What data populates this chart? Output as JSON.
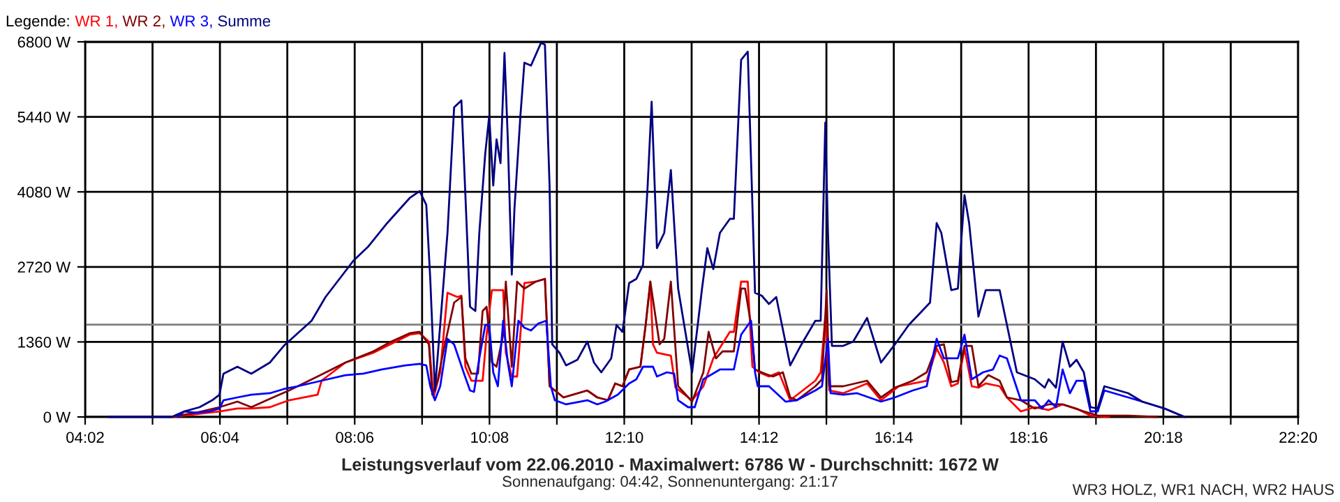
{
  "chart_data": {
    "type": "line",
    "title": "Leistungsverlauf vom 22.06.2010 - Maximalwert: 6786 W - Durchschnitt: 1672 W",
    "subtitle": "Sonnenaufgang: 04:42, Sonnenuntergang: 21:17",
    "legend_title": "Legende:",
    "annotations": [
      "WR3 HOLZ, WR1 NACH, WR2 HAUS",
      ",",
      ",",
      ","
    ],
    "legend": "top left",
    "grid": true,
    "marker": "none",
    "line_style": "solid",
    "xlim": [
      4.0333,
      22.3333
    ],
    "xticks": [
      {
        "value": 4.0333,
        "label": "04:02"
      },
      {
        "value": 5.05,
        "label": null
      },
      {
        "value": 6.0667,
        "label": "06:04"
      },
      {
        "value": 7.0833,
        "label": null
      },
      {
        "value": 8.1,
        "label": "08:06"
      },
      {
        "value": 9.1167,
        "label": null
      },
      {
        "value": 10.1333,
        "label": "10:08"
      },
      {
        "value": 11.15,
        "label": null
      },
      {
        "value": 12.1667,
        "label": "12:10"
      },
      {
        "value": 13.1833,
        "label": null
      },
      {
        "value": 14.2,
        "label": "14:12"
      },
      {
        "value": 15.2167,
        "label": null
      },
      {
        "value": 16.2333,
        "label": "16:14"
      },
      {
        "value": 17.25,
        "label": null
      },
      {
        "value": 18.2667,
        "label": "18:16"
      },
      {
        "value": 19.2833,
        "label": null
      },
      {
        "value": 20.3,
        "label": "20:18"
      },
      {
        "value": 21.3167,
        "label": null
      },
      {
        "value": 22.3333,
        "label": "22:20"
      }
    ],
    "ylim": [
      0,
      6800
    ],
    "yticks": [
      {
        "value": 0,
        "label": "0 W"
      },
      {
        "value": 1360,
        "label": "1360 W"
      },
      {
        "value": 2720,
        "label": "2720 W"
      },
      {
        "value": 4080,
        "label": "4080 W"
      },
      {
        "value": 5440,
        "label": "5440 W"
      },
      {
        "value": 6800,
        "label": "6800 W"
      }
    ],
    "ref_lines": [
      {
        "axis": "y",
        "value": 1672,
        "color": "#808080"
      }
    ],
    "series": [
      {
        "name": "WR 1",
        "color": "#ff0000",
        "x": [
          5.34,
          6.06,
          6.33,
          6.54,
          6.82,
          7.11,
          7.54,
          7.6,
          7.96,
          8.38,
          8.93,
          9.08,
          9.22,
          9.29,
          9.39,
          9.5,
          9.65,
          9.71,
          9.77,
          9.86,
          10.03,
          10.09,
          10.17,
          10.34,
          10.38,
          10.47,
          10.55,
          10.66,
          10.83,
          10.97,
          11.04,
          11.12,
          11.25,
          11.61,
          11.76,
          11.92,
          12.03,
          12.14,
          12.24,
          12.41,
          12.49,
          12.56,
          12.6,
          12.66,
          12.87,
          12.94,
          13.19,
          13.36,
          13.51,
          13.76,
          13.82,
          13.93,
          14.03,
          14.1,
          14.2,
          14.35,
          14.5,
          14.67,
          15.05,
          15.13,
          15.2,
          15.26,
          15.47,
          15.83,
          16.04,
          16.31,
          16.73,
          16.88,
          16.99,
          17.1,
          17.2,
          17.3,
          17.41,
          17.51,
          17.62,
          17.83,
          17.94,
          18.15,
          18.36,
          18.57,
          18.78,
          18.99,
          19.2,
          19.48
        ],
        "values": [
          0,
          101,
          152,
          152,
          177,
          303,
          404,
          657,
          986,
          1163,
          1492,
          1517,
          1365,
          354,
          809,
          2250,
          2174,
          2199,
          910,
          657,
          657,
          1492,
          2300,
          2300,
          1163,
          733,
          733,
          2427,
          2452,
          2503,
          556,
          480,
          354,
          480,
          354,
          303,
          607,
          556,
          860,
          910,
          1668,
          2452,
          1315,
          1163,
          1112,
          531,
          303,
          556,
          1062,
          1542,
          1542,
          2452,
          2452,
          910,
          809,
          733,
          809,
          303,
          657,
          809,
          1820,
          480,
          430,
          607,
          303,
          556,
          657,
          1239,
          986,
          556,
          607,
          1239,
          556,
          531,
          607,
          556,
          354,
          101,
          177,
          126,
          228,
          152,
          25,
          0
        ]
      },
      {
        "name": "WR 2",
        "color": "#800000",
        "x": [
          5.34,
          5.7,
          6.06,
          6.33,
          6.54,
          6.82,
          7.11,
          7.54,
          7.96,
          8.38,
          8.65,
          8.93,
          9.08,
          9.22,
          9.27,
          9.35,
          9.46,
          9.6,
          9.71,
          9.77,
          9.86,
          9.96,
          10.03,
          10.09,
          10.17,
          10.24,
          10.34,
          10.38,
          10.47,
          10.55,
          10.66,
          10.83,
          10.97,
          11.04,
          11.12,
          11.25,
          11.61,
          11.76,
          11.92,
          12.03,
          12.14,
          12.24,
          12.41,
          12.49,
          12.56,
          12.7,
          12.77,
          12.87,
          12.98,
          13.19,
          13.36,
          13.44,
          13.55,
          13.65,
          13.82,
          13.93,
          13.99,
          14.08,
          14.14,
          14.29,
          14.41,
          14.56,
          14.67,
          14.77,
          15.05,
          15.15,
          15.22,
          15.26,
          15.47,
          15.83,
          16.04,
          16.25,
          16.52,
          16.73,
          16.88,
          16.99,
          17.1,
          17.2,
          17.3,
          17.41,
          17.51,
          17.66,
          17.83,
          17.94,
          18.15,
          18.36,
          18.57,
          18.78,
          19.1,
          19.31,
          19.77,
          20.2
        ],
        "values": [
          0,
          76,
          177,
          278,
          177,
          329,
          480,
          733,
          986,
          1188,
          1365,
          1517,
          1542,
          1315,
          404,
          657,
          1315,
          2073,
          2174,
          1062,
          784,
          784,
          1921,
          1997,
          986,
          910,
          1492,
          2452,
          910,
          2452,
          2326,
          2452,
          2503,
          556,
          480,
          354,
          480,
          354,
          303,
          607,
          556,
          860,
          910,
          1668,
          2452,
          1315,
          1416,
          2452,
          556,
          278,
          809,
          1542,
          1062,
          1188,
          1188,
          2326,
          2326,
          1668,
          860,
          784,
          733,
          809,
          354,
          303,
          556,
          683,
          2300,
          556,
          556,
          657,
          354,
          531,
          657,
          809,
          1289,
          1315,
          632,
          657,
          1289,
          1289,
          556,
          758,
          657,
          354,
          303,
          152,
          228,
          228,
          101,
          25,
          25,
          0
        ]
      },
      {
        "name": "WR 3",
        "color": "#0000ff",
        "x": [
          5.43,
          5.53,
          5.7,
          5.91,
          6.06,
          6.12,
          6.33,
          6.54,
          6.82,
          7.03,
          7.24,
          7.6,
          7.96,
          8.23,
          8.51,
          8.86,
          9.08,
          9.18,
          9.24,
          9.31,
          9.39,
          9.5,
          9.6,
          9.75,
          9.84,
          9.9,
          9.98,
          10.07,
          10.13,
          10.19,
          10.26,
          10.34,
          10.41,
          10.47,
          10.57,
          10.66,
          10.76,
          10.87,
          10.99,
          11.06,
          11.12,
          11.29,
          11.61,
          11.76,
          11.88,
          12.07,
          12.24,
          12.35,
          12.45,
          12.6,
          12.66,
          12.81,
          12.92,
          12.98,
          13.13,
          13.23,
          13.36,
          13.61,
          13.82,
          13.93,
          14.08,
          14.14,
          14.18,
          14.35,
          14.6,
          14.77,
          15.05,
          15.15,
          15.24,
          15.28,
          15.47,
          15.68,
          16.04,
          16.25,
          16.52,
          16.73,
          16.88,
          16.99,
          17.2,
          17.26,
          17.3,
          17.41,
          17.58,
          17.73,
          17.83,
          17.94,
          18.15,
          18.36,
          18.47,
          18.57,
          18.68,
          18.78,
          18.89,
          18.99,
          19.1,
          19.2,
          19.31,
          19.41,
          19.77,
          19.98,
          20.32,
          20.62
        ],
        "values": [
          0,
          101,
          76,
          101,
          152,
          303,
          354,
          404,
          430,
          506,
          556,
          657,
          758,
          784,
          860,
          935,
          961,
          935,
          556,
          303,
          556,
          1416,
          1315,
          784,
          480,
          455,
          1062,
          1668,
          1668,
          809,
          556,
          1744,
          986,
          556,
          1744,
          1618,
          1567,
          1694,
          1744,
          556,
          303,
          228,
          303,
          228,
          278,
          404,
          607,
          683,
          910,
          910,
          733,
          809,
          784,
          303,
          177,
          177,
          683,
          860,
          860,
          1492,
          1744,
          809,
          556,
          556,
          278,
          303,
          480,
          556,
          1416,
          430,
          404,
          430,
          278,
          354,
          480,
          556,
          1416,
          1062,
          1062,
          1315,
          1492,
          683,
          809,
          860,
          1112,
          1062,
          303,
          303,
          152,
          303,
          177,
          860,
          430,
          657,
          657,
          101,
          101,
          480,
          354,
          278,
          152,
          0
        ]
      },
      {
        "name": "Summe",
        "color": "#000080",
        "x": [
          4.39,
          4.69,
          5.02,
          5.34,
          5.53,
          5.76,
          5.95,
          6.06,
          6.12,
          6.33,
          6.54,
          6.82,
          7.03,
          7.45,
          7.66,
          8.08,
          8.3,
          8.59,
          8.93,
          9.08,
          9.18,
          9.24,
          9.31,
          9.39,
          9.5,
          9.6,
          9.71,
          9.77,
          9.84,
          9.92,
          9.98,
          10.07,
          10.13,
          10.19,
          10.24,
          10.3,
          10.36,
          10.41,
          10.47,
          10.51,
          10.6,
          10.66,
          10.76,
          10.91,
          10.97,
          11.04,
          11.08,
          11.19,
          11.29,
          11.46,
          11.61,
          11.71,
          11.82,
          11.97,
          12.05,
          12.14,
          12.24,
          12.35,
          12.45,
          12.52,
          12.58,
          12.66,
          12.77,
          12.87,
          12.98,
          13.19,
          13.34,
          13.42,
          13.51,
          13.61,
          13.76,
          13.82,
          13.93,
          14.03,
          14.14,
          14.24,
          14.35,
          14.46,
          14.67,
          14.84,
          15.05,
          15.13,
          15.2,
          15.24,
          15.3,
          15.47,
          15.62,
          15.83,
          16.04,
          16.25,
          16.46,
          16.78,
          16.88,
          16.95,
          17.1,
          17.2,
          17.3,
          17.37,
          17.51,
          17.62,
          17.83,
          18.09,
          18.36,
          18.51,
          18.57,
          18.68,
          18.78,
          18.89,
          18.99,
          19.1,
          19.2,
          19.31,
          19.41,
          19.77,
          19.98,
          20.32,
          20.62
        ],
        "values": [
          0,
          0,
          0,
          0,
          101,
          177,
          303,
          404,
          784,
          910,
          784,
          986,
          1289,
          1744,
          2174,
          2831,
          3084,
          3514,
          3969,
          4095,
          3843,
          2503,
          480,
          1668,
          3337,
          5612,
          5739,
          4020,
          1997,
          1921,
          3337,
          4778,
          5460,
          4196,
          5031,
          4601,
          6598,
          5031,
          2579,
          3767,
          5460,
          6421,
          6371,
          6780,
          6750,
          4196,
          1315,
          1163,
          935,
          1036,
          1365,
          986,
          809,
          1062,
          1668,
          1542,
          2427,
          2503,
          2756,
          4196,
          5713,
          3059,
          3337,
          4475,
          2326,
          809,
          2326,
          3059,
          2680,
          3337,
          3590,
          3590,
          6472,
          6623,
          2250,
          2199,
          2048,
          2174,
          935,
          1315,
          1744,
          1744,
          5334,
          3337,
          1289,
          1289,
          1365,
          1795,
          986,
          1315,
          1668,
          2073,
          3514,
          3337,
          2300,
          2326,
          4020,
          3514,
          1820,
          2300,
          2300,
          809,
          683,
          531,
          683,
          531,
          1365,
          910,
          1036,
          809,
          177,
          152,
          556,
          430,
          278,
          152,
          0
        ]
      }
    ]
  }
}
